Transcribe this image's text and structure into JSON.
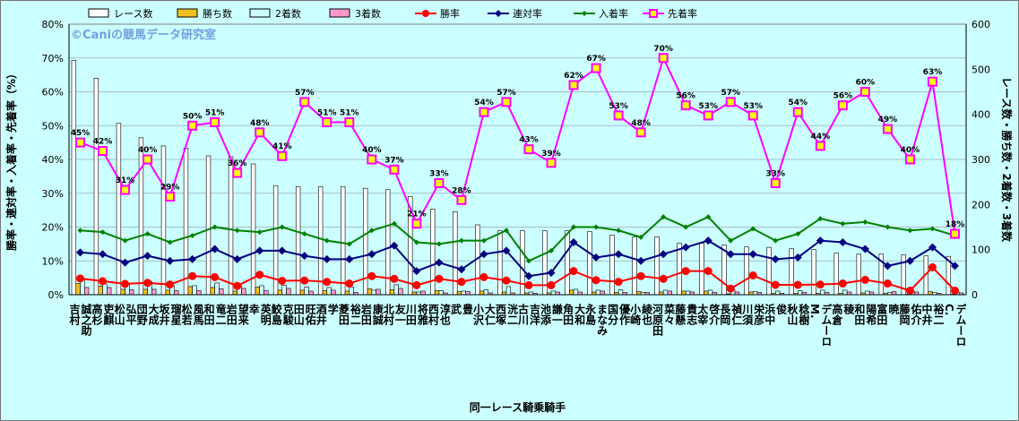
{
  "chart_data": {
    "type": "bar",
    "watermark": "©Caniの競馬データ研究室",
    "xlabel": "同一レース騎乗騎手",
    "ylabel_left": "勝率・連対率・入着率・先着率（%）",
    "ylabel_right": "レース数・勝ち数・2着数・3着数",
    "ylim_left": [
      0,
      80
    ],
    "ylim_right": [
      0,
      600
    ],
    "left_ticks": [
      "0%",
      "10%",
      "20%",
      "30%",
      "40%",
      "50%",
      "60%",
      "70%",
      "80%"
    ],
    "right_ticks": [
      "0",
      "100",
      "200",
      "300",
      "400",
      "500",
      "600"
    ],
    "grid": true,
    "legend_position": "top",
    "categories": [
      "吉村 誠之助",
      "高杉 吏麒",
      "松山 弘平",
      "団野 大成",
      "坂井 瑠星",
      "松若 風馬",
      "和田 竜二",
      "岩田 望来",
      "幸 英明",
      "鮫島 克駿",
      "田山 旺佑",
      "酒井 学",
      "菱田 裕二",
      "岩田 康誠",
      "北村 友一",
      "川田 将雅",
      "西村 淳也",
      "武 豊",
      "小沢 大仁",
      "西塚 洸二",
      "古川 吉洋",
      "池添 謙一",
      "角田 大和",
      "永島 まなみ",
      "国分 優作",
      "小崎 綾也",
      "河原田 菜々",
      "藤懸 貴志",
      "太宰 啓介",
      "長岡 禎仁",
      "川須 栄彦",
      "浜中 俊",
      "秋山 稔樹",
      "M. デムーロ",
      "高倉 稜",
      "和田 陽希",
      "富田 暁",
      "藤岡 佑介",
      "中井 裕二",
      "C. デムーロ"
    ],
    "series": [
      {
        "name": "レース数",
        "type": "bar",
        "axis": "right",
        "color": "#ffffff",
        "values": [
          520,
          480,
          380,
          348,
          330,
          325,
          308,
          306,
          290,
          242,
          240,
          240,
          240,
          236,
          233,
          218,
          190,
          184,
          155,
          142,
          142,
          142,
          142,
          140,
          132,
          128,
          128,
          114,
          114,
          110,
          106,
          105,
          102,
          100,
          92,
          90,
          90,
          88,
          86,
          85
        ]
      },
      {
        "name": "勝ち数",
        "type": "bar",
        "axis": "right",
        "color": "#f0c020",
        "values": [
          25,
          19,
          12,
          12,
          10,
          18,
          16,
          8,
          17,
          10,
          10,
          9,
          8,
          13,
          11,
          6,
          9,
          7,
          8,
          6,
          4,
          4,
          10,
          6,
          5,
          7,
          6,
          8,
          8,
          2,
          6,
          3,
          3,
          3,
          3,
          4,
          3,
          1,
          7,
          1
        ]
      },
      {
        "name": "2着数",
        "type": "bar",
        "axis": "right",
        "color": "#ccffff",
        "values": [
          35,
          24,
          25,
          30,
          20,
          20,
          26,
          20,
          20,
          21,
          17,
          16,
          17,
          10,
          22,
          6,
          9,
          8,
          11,
          18,
          6,
          8,
          12,
          10,
          11,
          5,
          10,
          8,
          10,
          11,
          7,
          8,
          9,
          10,
          10,
          8,
          5,
          8,
          5,
          6
        ]
      },
      {
        "name": "3着数",
        "type": "bar",
        "axis": "right",
        "color": "#ff99cc",
        "values": [
          16,
          16,
          11,
          12,
          9,
          9,
          13,
          14,
          9,
          14,
          8,
          10,
          5,
          12,
          14,
          8,
          4,
          7,
          4,
          4,
          3,
          6,
          6,
          8,
          5,
          5,
          8,
          6,
          5,
          6,
          5,
          3,
          5,
          5,
          6,
          6,
          7,
          6,
          3,
          4
        ]
      },
      {
        "name": "勝率",
        "type": "line",
        "axis": "left",
        "color": "#ff0000",
        "values": [
          4.8,
          4.0,
          3.2,
          3.5,
          3.0,
          5.5,
          5.2,
          2.6,
          5.9,
          4.1,
          4.2,
          3.8,
          3.3,
          5.5,
          4.7,
          2.8,
          4.7,
          3.8,
          5.2,
          4.2,
          2.8,
          2.8,
          7.0,
          4.3,
          3.8,
          5.5,
          4.7,
          7.0,
          7.0,
          1.8,
          5.7,
          2.9,
          2.9,
          3.0,
          3.3,
          4.4,
          3.3,
          1.2,
          8.1,
          1.2
        ]
      },
      {
        "name": "連対率",
        "type": "line",
        "axis": "left",
        "color": "#000080",
        "values": [
          12.5,
          12.0,
          9.5,
          11.5,
          10.0,
          10.5,
          13.5,
          10.5,
          13.0,
          13.0,
          11.5,
          10.5,
          10.5,
          12.0,
          14.5,
          7.0,
          9.5,
          7.5,
          12.0,
          13.0,
          5.5,
          6.5,
          15.5,
          11.0,
          12.0,
          10.0,
          12.0,
          14.0,
          16.0,
          12.0,
          12.0,
          10.5,
          11.0,
          16.0,
          15.5,
          13.5,
          8.5,
          10.0,
          14.0,
          8.5
        ]
      },
      {
        "name": "入着率",
        "type": "line",
        "axis": "left",
        "color": "#008000",
        "values": [
          19.0,
          18.5,
          16.0,
          18.0,
          15.5,
          17.5,
          20.0,
          19.0,
          18.5,
          20.0,
          18.0,
          16.0,
          15.0,
          19.0,
          21.0,
          15.5,
          15.0,
          16.0,
          16.0,
          19.0,
          10.0,
          13.0,
          20.0,
          20.0,
          19.0,
          17.0,
          23.0,
          20.0,
          23.0,
          16.0,
          19.5,
          16.0,
          18.0,
          22.5,
          21.0,
          21.5,
          20.0,
          19.0,
          19.5,
          17.5
        ]
      },
      {
        "name": "先着率",
        "type": "line",
        "axis": "left",
        "color": "#ff00ff",
        "values": [
          45.0,
          42.5,
          31.0,
          40.0,
          29.0,
          50.0,
          51.0,
          36.0,
          48.0,
          41.0,
          57.0,
          51.0,
          51.0,
          40.0,
          37.0,
          21.0,
          33.0,
          28.0,
          54.0,
          57.0,
          43.0,
          39.0,
          62.0,
          67.0,
          53.0,
          48.0,
          70.0,
          56.0,
          53.0,
          57.0,
          53.0,
          33.0,
          54.0,
          44.0,
          56.0,
          60.0,
          49.0,
          40.0,
          63.0,
          18.0
        ],
        "labels": [
          "45%",
          "42%",
          "31%",
          "40%",
          "29%",
          "50%",
          "51%",
          "36%",
          "48%",
          "41%",
          "57%",
          "51%",
          "51%",
          "40%",
          "37%",
          "21%",
          "33%",
          "28%",
          "54%",
          "57%",
          "43%",
          "39%",
          "62%",
          "67%",
          "53%",
          "48%",
          "70%",
          "56%",
          "53%",
          "57%",
          "53%",
          "33%",
          "54%",
          "44%",
          "56%",
          "60%",
          "49%",
          "40%",
          "63%",
          "18%"
        ]
      }
    ]
  }
}
